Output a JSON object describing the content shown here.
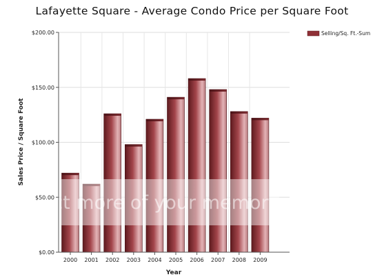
{
  "chart_data": {
    "type": "bar",
    "title": "Lafayette Square - Average Condo Price per Square Foot",
    "xlabel": "Year",
    "ylabel": "Sales Price / Square Foot",
    "categories": [
      "2000",
      "2001",
      "2002",
      "2003",
      "2004",
      "2005",
      "2006",
      "2007",
      "2008",
      "2009"
    ],
    "series": [
      {
        "name": "Selling/Sq. Ft.-Sum",
        "values": [
          72,
          62,
          126,
          98,
          121,
          141,
          158,
          148,
          128,
          122
        ]
      }
    ],
    "ylim": [
      0,
      200
    ],
    "yticks": [
      0,
      50,
      100,
      150,
      200
    ],
    "ytick_labels": [
      "$0.00",
      "$50.00",
      "$100.00",
      "$150.00",
      "$200.00"
    ],
    "grid": true,
    "legend_position": "top-right",
    "bar_color": "#8f3036"
  },
  "watermark": {
    "text": "ct more of your memorie"
  }
}
